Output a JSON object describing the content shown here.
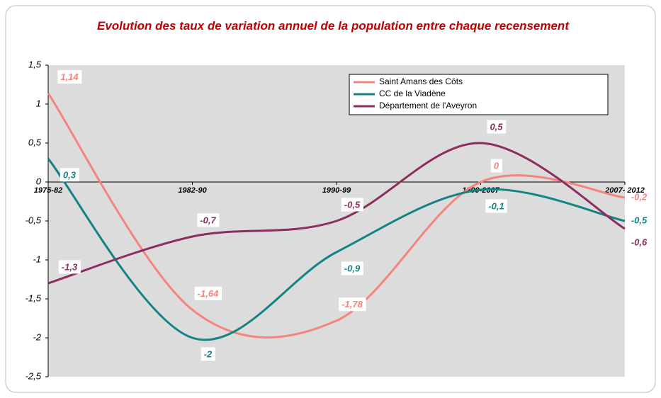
{
  "chart_data": {
    "type": "line",
    "title": "Evolution des taux de variation annuel de la population entre chaque recensement",
    "categories": [
      "1975-82",
      "1982-90",
      "1990-99",
      "1999-2007",
      "2007- 2012"
    ],
    "series": [
      {
        "name": "Saint Amans des Côts",
        "color": "#f4847d",
        "values": [
          1.14,
          -1.64,
          -1.78,
          0,
          -0.2
        ],
        "value_labels": [
          "1,14",
          "-1,64",
          "-1,78",
          "0",
          "-0,2"
        ]
      },
      {
        "name": "CC de la Viadène",
        "color": "#138383",
        "values": [
          0.3,
          -2,
          -0.9,
          -0.1,
          -0.5
        ],
        "value_labels": [
          "0,3",
          "-2",
          "-0,9",
          "-0,1",
          "-0,5"
        ]
      },
      {
        "name": "Département de l'Aveyron",
        "color": "#8b2d5e",
        "values": [
          -1.3,
          -0.7,
          -0.5,
          0.5,
          -0.6
        ],
        "value_labels": [
          "-1,3",
          "-0,7",
          "-0,5",
          "0,5",
          "-0,6"
        ]
      }
    ],
    "ylim": [
      -2.5,
      1.5
    ],
    "yticks": [
      {
        "value": 1.5,
        "label": "1,5"
      },
      1,
      {
        "value": 0.5,
        "label": "0,5"
      },
      0,
      {
        "value": -0.5,
        "label": "-0,5"
      },
      -1,
      {
        "value": -1.5,
        "label": "-1,5"
      },
      -2,
      {
        "value": -2.5,
        "label": "-2,5"
      }
    ],
    "legend": "upper right",
    "smooth": true
  }
}
